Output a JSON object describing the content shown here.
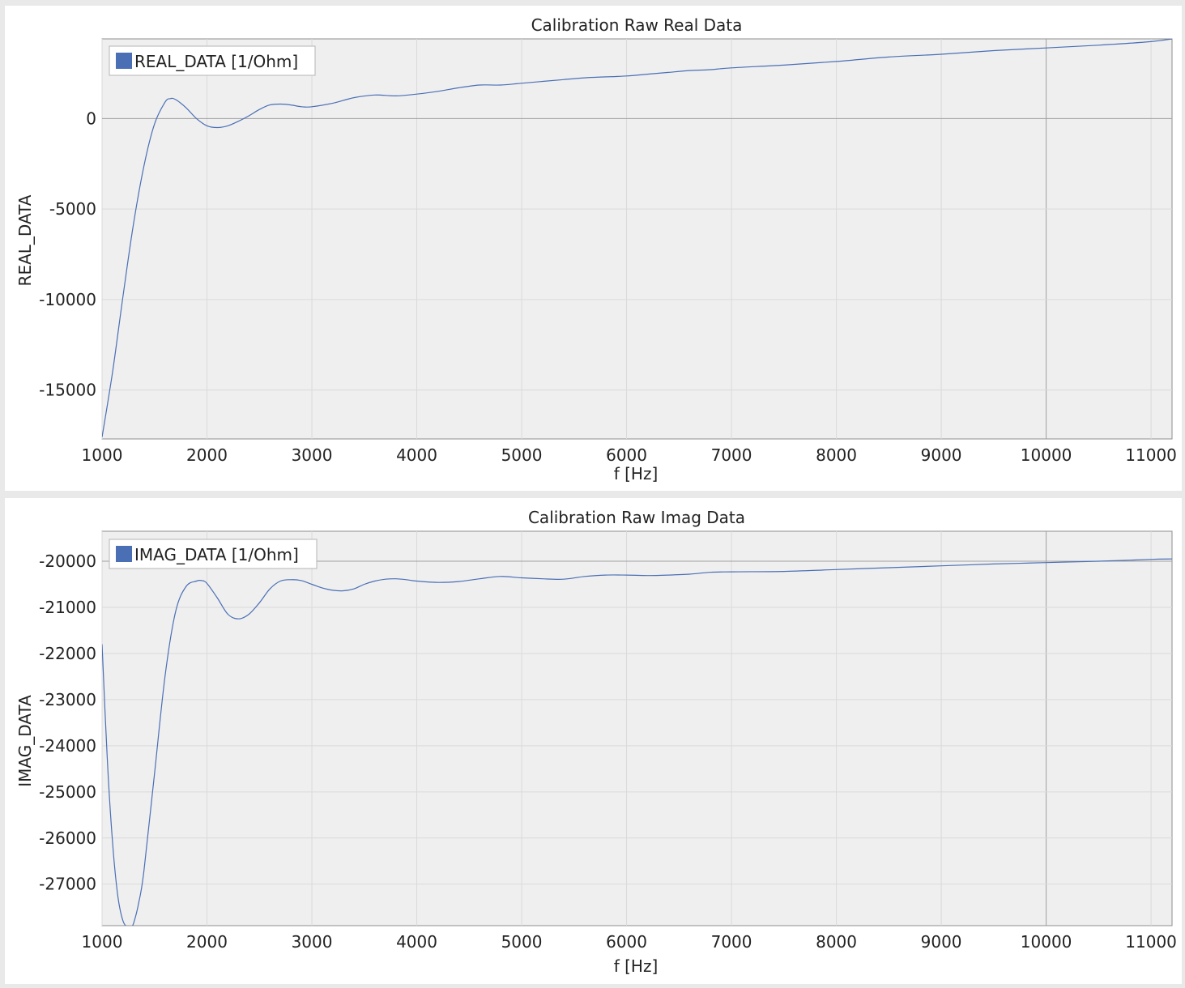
{
  "charts": [
    {
      "title": "Calibration Raw Real Data",
      "ylabel": "REAL_DATA",
      "xlabel": "f [Hz]",
      "legend": "REAL_DATA [1/Ohm]"
    },
    {
      "title": "Calibration Raw Imag Data",
      "ylabel": "IMAG_DATA",
      "xlabel": "f [Hz]",
      "legend": "IMAG_DATA [1/Ohm]"
    }
  ],
  "chart_data": [
    {
      "type": "line",
      "title": "Calibration Raw Real Data",
      "xlabel": "f [Hz]",
      "ylabel": "REAL_DATA",
      "xlim": [
        1000,
        11200
      ],
      "ylim": [
        -17700,
        4400
      ],
      "xticks": [
        1000,
        2000,
        3000,
        4000,
        5000,
        6000,
        7000,
        8000,
        9000,
        10000,
        11000
      ],
      "yticks": [
        0,
        -5000,
        -10000,
        -15000
      ],
      "ytick_labels": [
        "0",
        "-5000",
        "-10000",
        "-15000"
      ],
      "grid": true,
      "legend_position": "top-left",
      "series_color": "#4a6fb5",
      "series": [
        {
          "name": "REAL_DATA [1/Ohm]",
          "x": [
            1000,
            1100,
            1200,
            1300,
            1400,
            1500,
            1600,
            1650,
            1700,
            1800,
            1900,
            2000,
            2100,
            2200,
            2300,
            2400,
            2500,
            2600,
            2700,
            2800,
            2900,
            3000,
            3200,
            3400,
            3600,
            3800,
            4000,
            4200,
            4400,
            4600,
            4800,
            5000,
            5200,
            5400,
            5600,
            5800,
            6000,
            6200,
            6400,
            6600,
            6800,
            7000,
            7500,
            8000,
            8500,
            9000,
            9500,
            10000,
            10500,
            11000,
            11200
          ],
          "y": [
            -17600,
            -14000,
            -9800,
            -5800,
            -2600,
            -300,
            900,
            1100,
            1050,
            600,
            0,
            -400,
            -500,
            -400,
            -150,
            150,
            500,
            750,
            800,
            750,
            650,
            650,
            850,
            1150,
            1300,
            1250,
            1350,
            1500,
            1700,
            1850,
            1850,
            1950,
            2050,
            2150,
            2250,
            2300,
            2350,
            2450,
            2550,
            2650,
            2700,
            2800,
            2950,
            3150,
            3400,
            3550,
            3750,
            3900,
            4050,
            4250,
            4400
          ]
        }
      ]
    },
    {
      "type": "line",
      "title": "Calibration Raw Imag Data",
      "xlabel": "f [Hz]",
      "ylabel": "IMAG_DATA",
      "xlim": [
        1000,
        11200
      ],
      "ylim": [
        -27900,
        -19350
      ],
      "xticks": [
        1000,
        2000,
        3000,
        4000,
        5000,
        6000,
        7000,
        8000,
        9000,
        10000,
        11000
      ],
      "yticks": [
        -20000,
        -21000,
        -22000,
        -23000,
        -24000,
        -25000,
        -26000,
        -27000
      ],
      "ytick_labels": [
        "-20000",
        "-21000",
        "-22000",
        "-23000",
        "-24000",
        "-25000",
        "-26000",
        "-27000"
      ],
      "grid": true,
      "legend_position": "top-left",
      "series_color": "#4a6fb5",
      "series": [
        {
          "name": "IMAG_DATA [1/Ohm]",
          "x": [
            1000,
            1050,
            1100,
            1150,
            1200,
            1250,
            1270,
            1300,
            1350,
            1400,
            1500,
            1600,
            1700,
            1800,
            1900,
            1950,
            2000,
            2100,
            2200,
            2300,
            2400,
            2500,
            2600,
            2700,
            2800,
            2900,
            3000,
            3100,
            3200,
            3300,
            3400,
            3500,
            3600,
            3700,
            3800,
            3900,
            4000,
            4200,
            4400,
            4600,
            4800,
            5000,
            5200,
            5400,
            5600,
            5800,
            6000,
            6200,
            6400,
            6600,
            6800,
            7000,
            7500,
            8000,
            8500,
            9000,
            9500,
            10000,
            10500,
            11000,
            11200
          ],
          "y": [
            -21800,
            -24300,
            -26100,
            -27250,
            -27800,
            -27950,
            -27950,
            -27850,
            -27400,
            -26700,
            -24600,
            -22500,
            -21100,
            -20550,
            -20430,
            -20420,
            -20480,
            -20800,
            -21150,
            -21250,
            -21150,
            -20900,
            -20600,
            -20430,
            -20400,
            -20420,
            -20500,
            -20580,
            -20630,
            -20640,
            -20600,
            -20500,
            -20430,
            -20390,
            -20380,
            -20400,
            -20430,
            -20460,
            -20440,
            -20380,
            -20330,
            -20360,
            -20380,
            -20390,
            -20330,
            -20300,
            -20300,
            -20310,
            -20300,
            -20280,
            -20240,
            -20230,
            -20220,
            -20180,
            -20140,
            -20100,
            -20060,
            -20030,
            -20000,
            -19960,
            -19950
          ]
        }
      ]
    }
  ]
}
